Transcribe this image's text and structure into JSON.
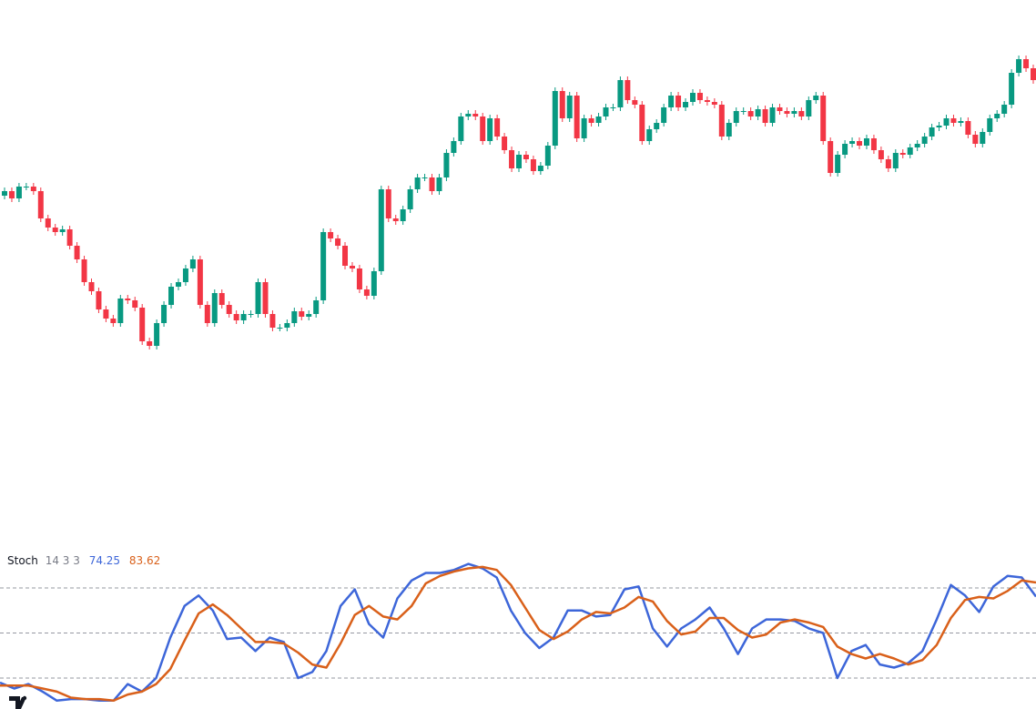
{
  "chart_data": [
    {
      "type": "candlestick",
      "up_color": "#089981",
      "down_color": "#f23645",
      "ylim": [
        210,
        800
      ],
      "open": [
        585,
        590,
        582,
        595,
        595,
        590,
        560,
        550,
        545,
        548,
        530,
        515,
        490,
        480,
        460,
        450,
        445,
        472,
        470,
        462,
        425,
        420,
        445,
        465,
        485,
        490,
        505,
        515,
        465,
        445,
        478,
        465,
        455,
        448,
        455,
        455,
        490,
        455,
        440,
        440,
        445,
        458,
        452,
        455,
        470,
        545,
        538,
        530,
        508,
        505,
        482,
        475,
        502,
        592,
        560,
        557,
        570,
        592,
        605,
        605,
        590,
        605,
        632,
        645,
        672,
        675,
        672,
        645,
        670,
        650,
        635,
        615,
        630,
        625,
        612,
        618,
        640,
        700,
        670,
        695,
        648,
        670,
        665,
        672,
        682,
        682,
        712,
        690,
        685,
        645,
        658,
        665,
        682,
        695,
        682,
        688,
        698,
        690,
        688,
        685,
        650,
        665,
        678,
        678,
        672,
        680,
        665,
        682,
        678,
        675,
        678,
        672,
        690,
        695,
        645,
        610,
        630,
        642,
        645,
        640,
        648,
        635,
        625,
        615,
        632,
        630,
        638,
        642,
        650,
        660,
        662,
        670,
        665,
        667,
        652,
        642,
        655,
        670,
        675,
        685,
        720,
        735,
        725
      ],
      "high": [
        594,
        594,
        599,
        599,
        599,
        594,
        564,
        554,
        552,
        552,
        534,
        519,
        494,
        484,
        464,
        454,
        476,
        476,
        474,
        466,
        429,
        449,
        469,
        489,
        494,
        509,
        519,
        519,
        469,
        482,
        482,
        469,
        459,
        459,
        459,
        494,
        494,
        459,
        444,
        449,
        462,
        462,
        459,
        474,
        549,
        549,
        542,
        534,
        512,
        509,
        486,
        506,
        596,
        596,
        564,
        574,
        596,
        609,
        609,
        609,
        609,
        636,
        649,
        676,
        679,
        679,
        676,
        674,
        674,
        654,
        639,
        634,
        634,
        629,
        622,
        644,
        704,
        704,
        699,
        699,
        674,
        674,
        676,
        686,
        686,
        716,
        716,
        694,
        689,
        662,
        669,
        686,
        699,
        699,
        692,
        702,
        702,
        694,
        692,
        689,
        669,
        682,
        682,
        682,
        684,
        684,
        686,
        686,
        682,
        682,
        682,
        694,
        699,
        699,
        649,
        634,
        646,
        649,
        649,
        652,
        652,
        639,
        629,
        636,
        636,
        642,
        646,
        654,
        664,
        666,
        674,
        674,
        671,
        671,
        656,
        659,
        674,
        679,
        689,
        724,
        739,
        739,
        729
      ],
      "low": [
        581,
        578,
        578,
        591,
        586,
        556,
        546,
        541,
        541,
        526,
        511,
        486,
        476,
        456,
        446,
        441,
        441,
        466,
        458,
        421,
        416,
        416,
        441,
        461,
        481,
        486,
        501,
        461,
        441,
        441,
        461,
        451,
        444,
        444,
        451,
        451,
        451,
        436,
        436,
        436,
        441,
        448,
        448,
        451,
        466,
        534,
        526,
        504,
        501,
        478,
        471,
        471,
        498,
        556,
        553,
        553,
        566,
        588,
        601,
        586,
        586,
        601,
        628,
        641,
        668,
        668,
        641,
        641,
        646,
        631,
        611,
        611,
        621,
        608,
        608,
        614,
        636,
        666,
        666,
        644,
        644,
        661,
        661,
        668,
        678,
        678,
        686,
        681,
        641,
        641,
        654,
        661,
        678,
        678,
        678,
        684,
        686,
        684,
        681,
        646,
        646,
        661,
        674,
        668,
        668,
        661,
        661,
        674,
        671,
        671,
        668,
        668,
        686,
        641,
        606,
        606,
        626,
        638,
        636,
        636,
        631,
        621,
        611,
        611,
        626,
        626,
        634,
        638,
        646,
        656,
        658,
        661,
        661,
        648,
        638,
        638,
        651,
        666,
        671,
        681,
        716,
        721,
        708
      ],
      "close": [
        590,
        582,
        595,
        595,
        590,
        560,
        550,
        545,
        548,
        530,
        515,
        490,
        480,
        460,
        450,
        445,
        472,
        470,
        462,
        425,
        420,
        445,
        465,
        485,
        490,
        505,
        515,
        465,
        445,
        478,
        465,
        455,
        448,
        455,
        455,
        490,
        455,
        440,
        440,
        445,
        458,
        452,
        455,
        470,
        545,
        538,
        530,
        508,
        505,
        482,
        475,
        502,
        592,
        560,
        557,
        570,
        592,
        605,
        605,
        590,
        605,
        632,
        645,
        672,
        675,
        672,
        645,
        670,
        650,
        635,
        615,
        630,
        625,
        612,
        618,
        640,
        700,
        670,
        695,
        648,
        670,
        665,
        672,
        682,
        682,
        712,
        690,
        685,
        645,
        658,
        665,
        682,
        695,
        682,
        688,
        698,
        690,
        688,
        685,
        650,
        665,
        678,
        678,
        672,
        680,
        665,
        682,
        678,
        675,
        678,
        672,
        690,
        695,
        645,
        610,
        630,
        642,
        645,
        640,
        648,
        635,
        625,
        615,
        632,
        630,
        638,
        642,
        650,
        660,
        662,
        670,
        665,
        667,
        652,
        642,
        655,
        670,
        675,
        685,
        720,
        735,
        725,
        712
      ]
    },
    {
      "type": "line",
      "name": "Stoch",
      "params": "14 3 3",
      "ylim": [
        0,
        100
      ],
      "levels": [
        80,
        50,
        20
      ],
      "series": [
        {
          "color": "#3d66d9",
          "values": [
            17,
            13,
            16,
            11,
            5,
            6,
            6,
            5,
            5,
            16,
            11,
            20,
            47,
            68,
            75,
            65,
            46,
            47,
            38,
            47,
            44,
            20,
            24,
            38,
            68,
            79,
            56,
            47,
            73,
            85,
            90,
            90,
            92,
            96,
            93,
            87,
            65,
            50,
            40,
            47,
            65,
            65,
            61,
            62,
            79,
            81,
            53,
            41,
            53,
            59,
            67,
            53,
            36,
            53,
            59,
            59,
            58,
            53,
            50,
            20,
            38,
            42,
            29,
            27,
            30,
            38,
            59,
            82,
            75,
            64,
            81,
            88,
            87,
            74.25
          ]
        },
        {
          "color": "#d9601a",
          "values": [
            15,
            15,
            15,
            13,
            11,
            7,
            6,
            6,
            5,
            9,
            11,
            16,
            26,
            45,
            63,
            69,
            62,
            53,
            44,
            44,
            43,
            37,
            29,
            27,
            43,
            62,
            68,
            61,
            59,
            68,
            83,
            88,
            91,
            93,
            94,
            92,
            82,
            67,
            52,
            46,
            51,
            59,
            64,
            63,
            67,
            74,
            71,
            58,
            49,
            51,
            60,
            60,
            52,
            47,
            49,
            57,
            59,
            57,
            54,
            41,
            36,
            33,
            36,
            33,
            29,
            32,
            42,
            60,
            72,
            74,
            73,
            78,
            85,
            83.62
          ]
        }
      ]
    }
  ]
}
